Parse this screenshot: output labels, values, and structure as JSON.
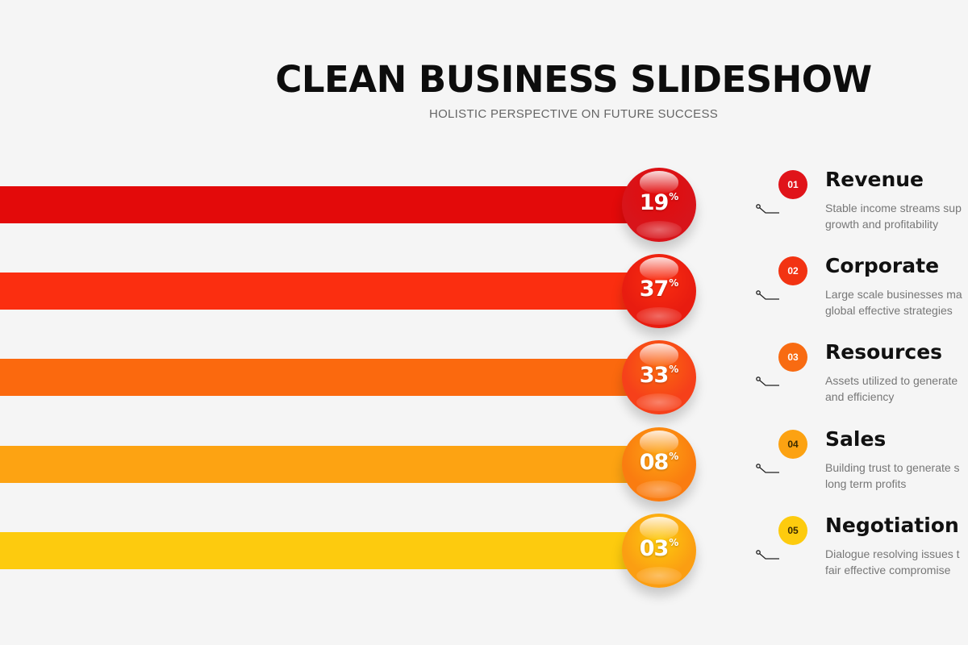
{
  "header": {
    "title": "CLEAN BUSINESS SLIDESHOW",
    "subtitle": "HOLISTIC PERSPECTIVE ON FUTURE SUCCESS"
  },
  "items": [
    {
      "number": "01",
      "percent": "19",
      "percent_sign": "%",
      "title": "Revenue",
      "desc_line1": "Stable income streams sup",
      "desc_line2": "growth and profitability",
      "bar_color": "#e30a0a",
      "ball_color": "#d8141a",
      "badge_color": "#e0141a"
    },
    {
      "number": "02",
      "percent": "37",
      "percent_sign": "%",
      "title": "Corporate",
      "desc_line1": "Large scale businesses ma",
      "desc_line2": "global effective strategies",
      "bar_color": "#fb2e10",
      "ball_color": "#e81c10",
      "badge_color": "#f23312"
    },
    {
      "number": "03",
      "percent": "33",
      "percent_sign": "%",
      "title": "Resources",
      "desc_line1": "Assets utilized to generate",
      "desc_line2": "and efficiency",
      "bar_color": "#fb690e",
      "ball_color": "#f6401a",
      "badge_color": "#f86b12"
    },
    {
      "number": "04",
      "percent": "08",
      "percent_sign": "%",
      "title": "Sales",
      "desc_line1": "Building trust to generate s",
      "desc_line2": "long term profits",
      "bar_color": "#fda312",
      "ball_color": "#fa7c10",
      "badge_color": "#fca212"
    },
    {
      "number": "05",
      "percent": "03",
      "percent_sign": "%",
      "title": "Negotiation",
      "desc_line1": "Dialogue resolving issues t",
      "desc_line2": "fair effective compromise",
      "bar_color": "#fdcb0e",
      "ball_color": "#fb9e12",
      "badge_color": "#fdcb0e"
    }
  ]
}
